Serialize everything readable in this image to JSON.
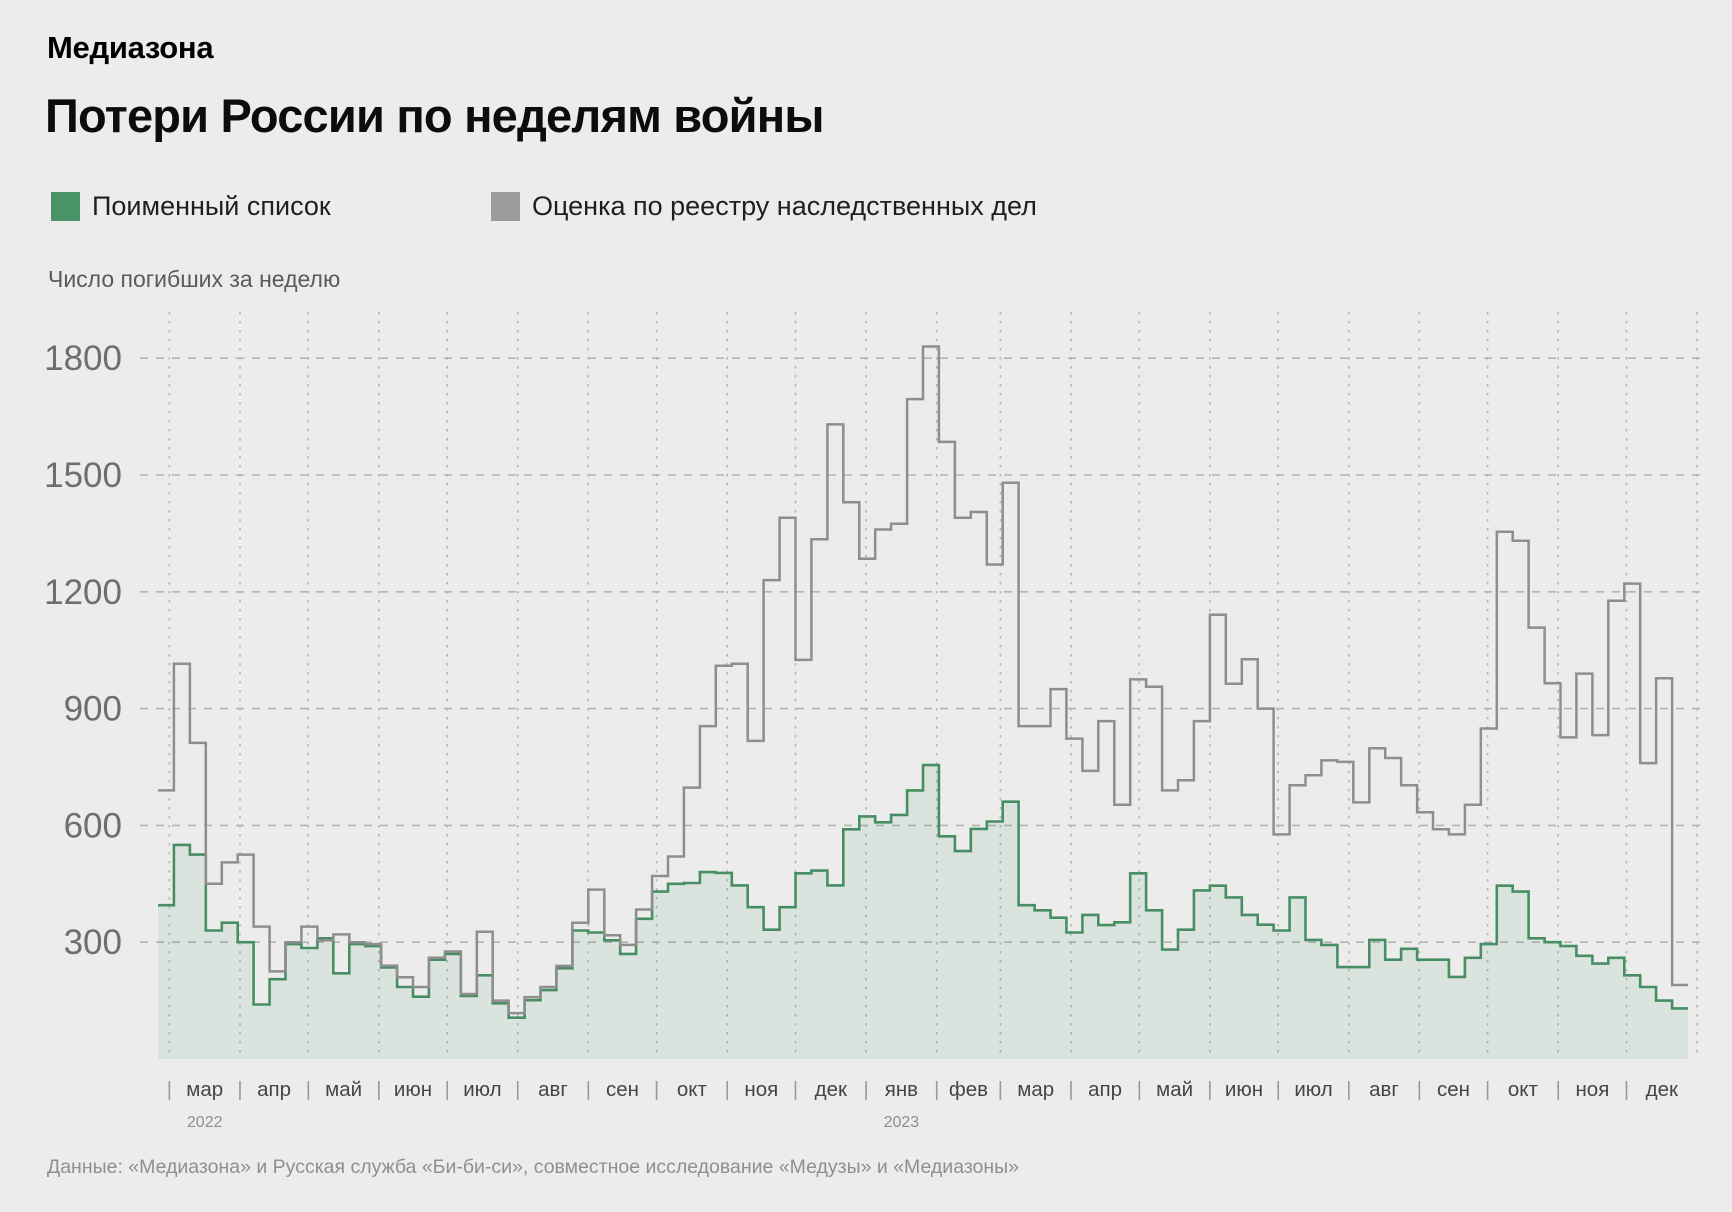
{
  "header": {
    "logo": "Медиазона",
    "title": "Потери России по неделям войны"
  },
  "legend": {
    "items": [
      {
        "label": "Поименный список",
        "color": "#4a9367"
      },
      {
        "label": "Оценка по реестру наследственных дел",
        "color": "#9b9b9b"
      }
    ]
  },
  "chart_data": {
    "type": "area",
    "subtype": "step-weekly",
    "title": "Потери России по неделям войны",
    "ylabel": "Число погибших за неделю",
    "xlabel": "",
    "ylim": [
      0,
      1900
    ],
    "yticks": [
      300,
      600,
      900,
      1200,
      1500,
      1800
    ],
    "grid": true,
    "legend_position": "top",
    "weeks": 96,
    "start_offset_days": 5,
    "x_months": [
      {
        "label": "мар",
        "year": "2022",
        "days": 31
      },
      {
        "label": "апр",
        "days": 30
      },
      {
        "label": "май",
        "days": 31
      },
      {
        "label": "июн",
        "days": 30
      },
      {
        "label": "июл",
        "days": 31
      },
      {
        "label": "авг",
        "days": 31
      },
      {
        "label": "сен",
        "days": 30
      },
      {
        "label": "окт",
        "days": 31
      },
      {
        "label": "ноя",
        "days": 30
      },
      {
        "label": "дек",
        "days": 31
      },
      {
        "label": "янв",
        "year": "2023",
        "days": 31
      },
      {
        "label": "фев",
        "days": 28
      },
      {
        "label": "мар",
        "days": 31
      },
      {
        "label": "апр",
        "days": 30
      },
      {
        "label": "май",
        "days": 31
      },
      {
        "label": "июн",
        "days": 30
      },
      {
        "label": "июл",
        "days": 31
      },
      {
        "label": "авг",
        "days": 31
      },
      {
        "label": "сен",
        "days": 30
      },
      {
        "label": "окт",
        "days": 31
      },
      {
        "label": "ноя",
        "days": 30
      },
      {
        "label": "дек",
        "days": 31
      }
    ],
    "series": [
      {
        "name": "Поименный список",
        "style": "step-area",
        "color": "#478f63",
        "fill_opacity": 0.1,
        "values": [
          395,
          550,
          525,
          330,
          350,
          300,
          140,
          205,
          295,
          285,
          310,
          220,
          295,
          290,
          235,
          185,
          160,
          255,
          270,
          162,
          215,
          143,
          106,
          151,
          177,
          233,
          330,
          325,
          305,
          270,
          360,
          430,
          450,
          452,
          480,
          478,
          446,
          390,
          332,
          390,
          477,
          484,
          446,
          590,
          623,
          608,
          627,
          690,
          755,
          572,
          534,
          591,
          610,
          661,
          395,
          382,
          363,
          325,
          370,
          344,
          351,
          477,
          382,
          281,
          332,
          433,
          445,
          415,
          370,
          345,
          330,
          415,
          306,
          293,
          236,
          236,
          306,
          255,
          283,
          255,
          255,
          211,
          260,
          295,
          445,
          430,
          310,
          300,
          290,
          265,
          245,
          260,
          215,
          185,
          150,
          130
        ]
      },
      {
        "name": "Оценка по реестру наследственных дел",
        "style": "step-line",
        "color": "#8e8e8e",
        "values": [
          690,
          1015,
          812,
          450,
          505,
          525,
          340,
          225,
          300,
          340,
          305,
          320,
          300,
          295,
          240,
          210,
          185,
          260,
          276,
          167,
          327,
          150,
          118,
          159,
          185,
          239,
          350,
          435,
          318,
          293,
          384,
          470,
          520,
          697,
          855,
          1010,
          1015,
          817,
          1230,
          1390,
          1025,
          1335,
          1630,
          1430,
          1285,
          1360,
          1375,
          1695,
          1830,
          1585,
          1390,
          1405,
          1270,
          1480,
          855,
          855,
          950,
          823,
          740,
          868,
          653,
          975,
          956,
          690,
          716,
          868,
          1141,
          964,
          1027,
          900,
          577,
          703,
          729,
          767,
          763,
          659,
          798,
          773,
          703,
          634,
          590,
          577,
          653,
          849,
          1354,
          1331,
          1108,
          965,
          826,
          990,
          832,
          1177,
          1221,
          760,
          978,
          190
        ]
      }
    ]
  },
  "footer": {
    "source": "Данные: «Медиазона» и Русская служба «Би-би-си», совместное исследование «Медузы» и «Медиазоны»"
  }
}
